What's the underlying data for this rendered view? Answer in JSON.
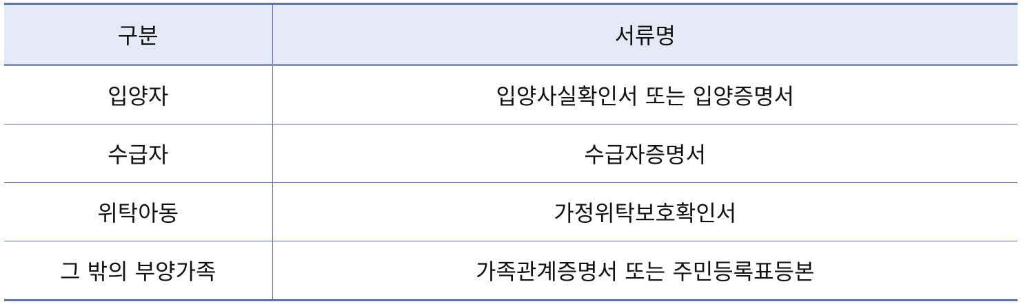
{
  "table": {
    "headers": {
      "category": "구분",
      "document": "서류명"
    },
    "rows": [
      {
        "category": "입양자",
        "document": "입양사실확인서 또는 입양증명서"
      },
      {
        "category": "수급자",
        "document": "수급자증명서"
      },
      {
        "category": "위탁아동",
        "document": "가정위탁보호확인서"
      },
      {
        "category": "그 밖의 부양가족",
        "document": "가족관계증명서 또는 주민등록표등본"
      }
    ]
  },
  "colors": {
    "border": "#5a72b5",
    "header_background": "#e4ebf6"
  }
}
